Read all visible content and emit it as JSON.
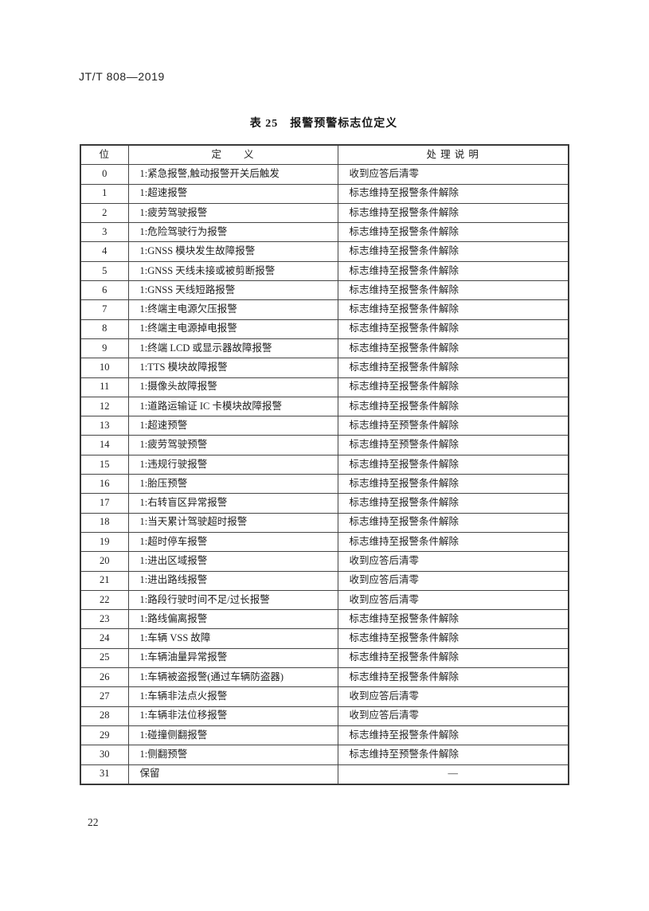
{
  "header": {
    "doc_code": "JT/T 808—2019"
  },
  "table": {
    "title": "表 25　报警预警标志位定义",
    "columns": [
      "位",
      "定　　义",
      "处 理 说 明"
    ],
    "rows": [
      {
        "bit": "0",
        "definition": "1:紧急报警,触动报警开关后触发",
        "handling": "收到应答后清零"
      },
      {
        "bit": "1",
        "definition": "1:超速报警",
        "handling": "标志维持至报警条件解除"
      },
      {
        "bit": "2",
        "definition": "1:疲劳驾驶报警",
        "handling": "标志维持至报警条件解除"
      },
      {
        "bit": "3",
        "definition": "1:危险驾驶行为报警",
        "handling": "标志维持至报警条件解除"
      },
      {
        "bit": "4",
        "definition": "1:GNSS 模块发生故障报警",
        "handling": "标志维持至报警条件解除"
      },
      {
        "bit": "5",
        "definition": "1:GNSS 天线未接或被剪断报警",
        "handling": "标志维持至报警条件解除"
      },
      {
        "bit": "6",
        "definition": "1:GNSS 天线短路报警",
        "handling": "标志维持至报警条件解除"
      },
      {
        "bit": "7",
        "definition": "1:终端主电源欠压报警",
        "handling": "标志维持至报警条件解除"
      },
      {
        "bit": "8",
        "definition": "1:终端主电源掉电报警",
        "handling": "标志维持至报警条件解除"
      },
      {
        "bit": "9",
        "definition": "1:终端 LCD 或显示器故障报警",
        "handling": "标志维持至报警条件解除"
      },
      {
        "bit": "10",
        "definition": "1:TTS 模块故障报警",
        "handling": "标志维持至报警条件解除"
      },
      {
        "bit": "11",
        "definition": "1:摄像头故障报警",
        "handling": "标志维持至报警条件解除"
      },
      {
        "bit": "12",
        "definition": "1:道路运输证 IC 卡模块故障报警",
        "handling": "标志维持至报警条件解除"
      },
      {
        "bit": "13",
        "definition": "1:超速预警",
        "handling": "标志维持至预警条件解除"
      },
      {
        "bit": "14",
        "definition": "1:疲劳驾驶预警",
        "handling": "标志维持至预警条件解除"
      },
      {
        "bit": "15",
        "definition": "1:违规行驶报警",
        "handling": "标志维持至报警条件解除"
      },
      {
        "bit": "16",
        "definition": "1:胎压预警",
        "handling": "标志维持至报警条件解除"
      },
      {
        "bit": "17",
        "definition": "1:右转盲区异常报警",
        "handling": "标志维持至报警条件解除"
      },
      {
        "bit": "18",
        "definition": "1:当天累计驾驶超时报警",
        "handling": "标志维持至报警条件解除"
      },
      {
        "bit": "19",
        "definition": "1:超时停车报警",
        "handling": "标志维持至报警条件解除"
      },
      {
        "bit": "20",
        "definition": "1:进出区域报警",
        "handling": "收到应答后清零"
      },
      {
        "bit": "21",
        "definition": "1:进出路线报警",
        "handling": "收到应答后清零"
      },
      {
        "bit": "22",
        "definition": "1:路段行驶时间不足/过长报警",
        "handling": "收到应答后清零"
      },
      {
        "bit": "23",
        "definition": "1:路线偏离报警",
        "handling": "标志维持至报警条件解除"
      },
      {
        "bit": "24",
        "definition": "1:车辆 VSS 故障",
        "handling": "标志维持至报警条件解除"
      },
      {
        "bit": "25",
        "definition": "1:车辆油量异常报警",
        "handling": "标志维持至报警条件解除"
      },
      {
        "bit": "26",
        "definition": "1:车辆被盗报警(通过车辆防盗器)",
        "handling": "标志维持至报警条件解除"
      },
      {
        "bit": "27",
        "definition": "1:车辆非法点火报警",
        "handling": "收到应答后清零"
      },
      {
        "bit": "28",
        "definition": "1:车辆非法位移报警",
        "handling": "收到应答后清零"
      },
      {
        "bit": "29",
        "definition": "1:碰撞侧翻报警",
        "handling": "标志维持至报警条件解除"
      },
      {
        "bit": "30",
        "definition": "1:侧翻预警",
        "handling": "标志维持至预警条件解除"
      },
      {
        "bit": "31",
        "definition": "保留",
        "handling": "—",
        "handling_align": "center"
      }
    ]
  },
  "footer": {
    "page_number": "22"
  }
}
